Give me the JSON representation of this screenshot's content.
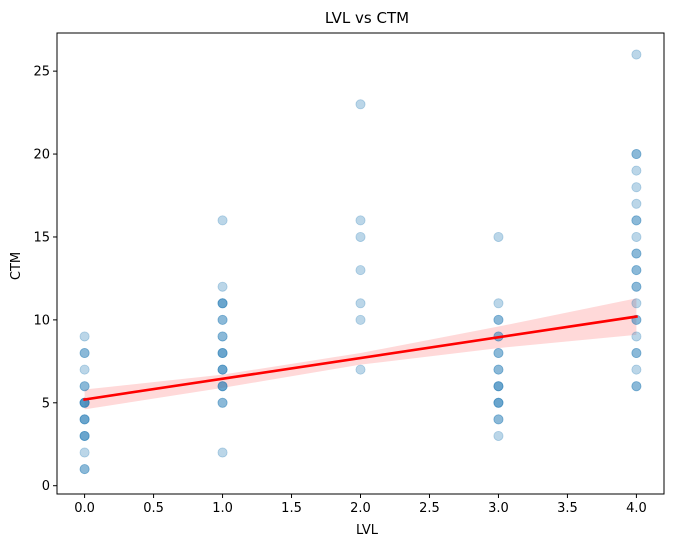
{
  "chart_data": {
    "type": "scatter",
    "title": "LVL vs CTM",
    "xlabel": "LVL",
    "ylabel": "CTM",
    "xlim": [
      -0.2,
      4.2
    ],
    "ylim": [
      -0.5,
      27.3
    ],
    "x_ticks": [
      0.0,
      0.5,
      1.0,
      1.5,
      2.0,
      2.5,
      3.0,
      3.5,
      4.0
    ],
    "x_tick_labels": [
      "0.0",
      "0.5",
      "1.0",
      "1.5",
      "2.0",
      "2.5",
      "3.0",
      "3.5",
      "4.0"
    ],
    "y_ticks": [
      0,
      5,
      10,
      15,
      20,
      25
    ],
    "y_tick_labels": [
      "0",
      "5",
      "10",
      "15",
      "20",
      "25"
    ],
    "grid": false,
    "legend": "none",
    "series": [
      {
        "color": "#1f77b4",
        "opacity": 0.3,
        "points": [
          {
            "x": 0,
            "y": 1
          },
          {
            "x": 0,
            "y": 1
          },
          {
            "x": 0,
            "y": 2
          },
          {
            "x": 0,
            "y": 3
          },
          {
            "x": 0,
            "y": 3
          },
          {
            "x": 0,
            "y": 3
          },
          {
            "x": 0,
            "y": 4
          },
          {
            "x": 0,
            "y": 4
          },
          {
            "x": 0,
            "y": 4
          },
          {
            "x": 0,
            "y": 5
          },
          {
            "x": 0,
            "y": 5
          },
          {
            "x": 0,
            "y": 5
          },
          {
            "x": 0,
            "y": 5
          },
          {
            "x": 0,
            "y": 6
          },
          {
            "x": 0,
            "y": 6
          },
          {
            "x": 0,
            "y": 7
          },
          {
            "x": 0,
            "y": 8
          },
          {
            "x": 0,
            "y": 8
          },
          {
            "x": 0,
            "y": 9
          },
          {
            "x": 1,
            "y": 2
          },
          {
            "x": 1,
            "y": 5
          },
          {
            "x": 1,
            "y": 5
          },
          {
            "x": 1,
            "y": 6
          },
          {
            "x": 1,
            "y": 6
          },
          {
            "x": 1,
            "y": 6
          },
          {
            "x": 1,
            "y": 7
          },
          {
            "x": 1,
            "y": 7
          },
          {
            "x": 1,
            "y": 7
          },
          {
            "x": 1,
            "y": 8
          },
          {
            "x": 1,
            "y": 8
          },
          {
            "x": 1,
            "y": 8
          },
          {
            "x": 1,
            "y": 9
          },
          {
            "x": 1,
            "y": 9
          },
          {
            "x": 1,
            "y": 10
          },
          {
            "x": 1,
            "y": 10
          },
          {
            "x": 1,
            "y": 11
          },
          {
            "x": 1,
            "y": 11
          },
          {
            "x": 1,
            "y": 11
          },
          {
            "x": 1,
            "y": 12
          },
          {
            "x": 1,
            "y": 16
          },
          {
            "x": 2,
            "y": 7
          },
          {
            "x": 2,
            "y": 10
          },
          {
            "x": 2,
            "y": 11
          },
          {
            "x": 2,
            "y": 13
          },
          {
            "x": 2,
            "y": 15
          },
          {
            "x": 2,
            "y": 16
          },
          {
            "x": 2,
            "y": 23
          },
          {
            "x": 3,
            "y": 3
          },
          {
            "x": 3,
            "y": 4
          },
          {
            "x": 3,
            "y": 4
          },
          {
            "x": 3,
            "y": 5
          },
          {
            "x": 3,
            "y": 5
          },
          {
            "x": 3,
            "y": 5
          },
          {
            "x": 3,
            "y": 6
          },
          {
            "x": 3,
            "y": 6
          },
          {
            "x": 3,
            "y": 6
          },
          {
            "x": 3,
            "y": 7
          },
          {
            "x": 3,
            "y": 7
          },
          {
            "x": 3,
            "y": 8
          },
          {
            "x": 3,
            "y": 8
          },
          {
            "x": 3,
            "y": 9
          },
          {
            "x": 3,
            "y": 9
          },
          {
            "x": 3,
            "y": 10
          },
          {
            "x": 3,
            "y": 10
          },
          {
            "x": 3,
            "y": 11
          },
          {
            "x": 3,
            "y": 15
          },
          {
            "x": 4,
            "y": 6
          },
          {
            "x": 4,
            "y": 6
          },
          {
            "x": 4,
            "y": 7
          },
          {
            "x": 4,
            "y": 8
          },
          {
            "x": 4,
            "y": 8
          },
          {
            "x": 4,
            "y": 9
          },
          {
            "x": 4,
            "y": 10
          },
          {
            "x": 4,
            "y": 10
          },
          {
            "x": 4,
            "y": 11
          },
          {
            "x": 4,
            "y": 12
          },
          {
            "x": 4,
            "y": 12
          },
          {
            "x": 4,
            "y": 13
          },
          {
            "x": 4,
            "y": 13
          },
          {
            "x": 4,
            "y": 14
          },
          {
            "x": 4,
            "y": 14
          },
          {
            "x": 4,
            "y": 15
          },
          {
            "x": 4,
            "y": 16
          },
          {
            "x": 4,
            "y": 16
          },
          {
            "x": 4,
            "y": 17
          },
          {
            "x": 4,
            "y": 18
          },
          {
            "x": 4,
            "y": 19
          },
          {
            "x": 4,
            "y": 20
          },
          {
            "x": 4,
            "y": 20
          },
          {
            "x": 4,
            "y": 26
          }
        ]
      }
    ],
    "regression": {
      "color": "#ff0000",
      "band_color": "#ff0000",
      "band_opacity": 0.15,
      "x_range": [
        0,
        4
      ],
      "intercept": 5.2,
      "slope": 1.25,
      "ci_lower": [
        [
          0,
          4.6
        ],
        [
          1,
          5.9
        ],
        [
          2,
          7.3
        ],
        [
          3,
          8.3
        ],
        [
          4,
          9.1
        ]
      ],
      "ci_upper": [
        [
          0,
          5.8
        ],
        [
          1,
          6.7
        ],
        [
          2,
          8.0
        ],
        [
          3,
          9.6
        ],
        [
          4,
          11.3
        ]
      ]
    }
  }
}
